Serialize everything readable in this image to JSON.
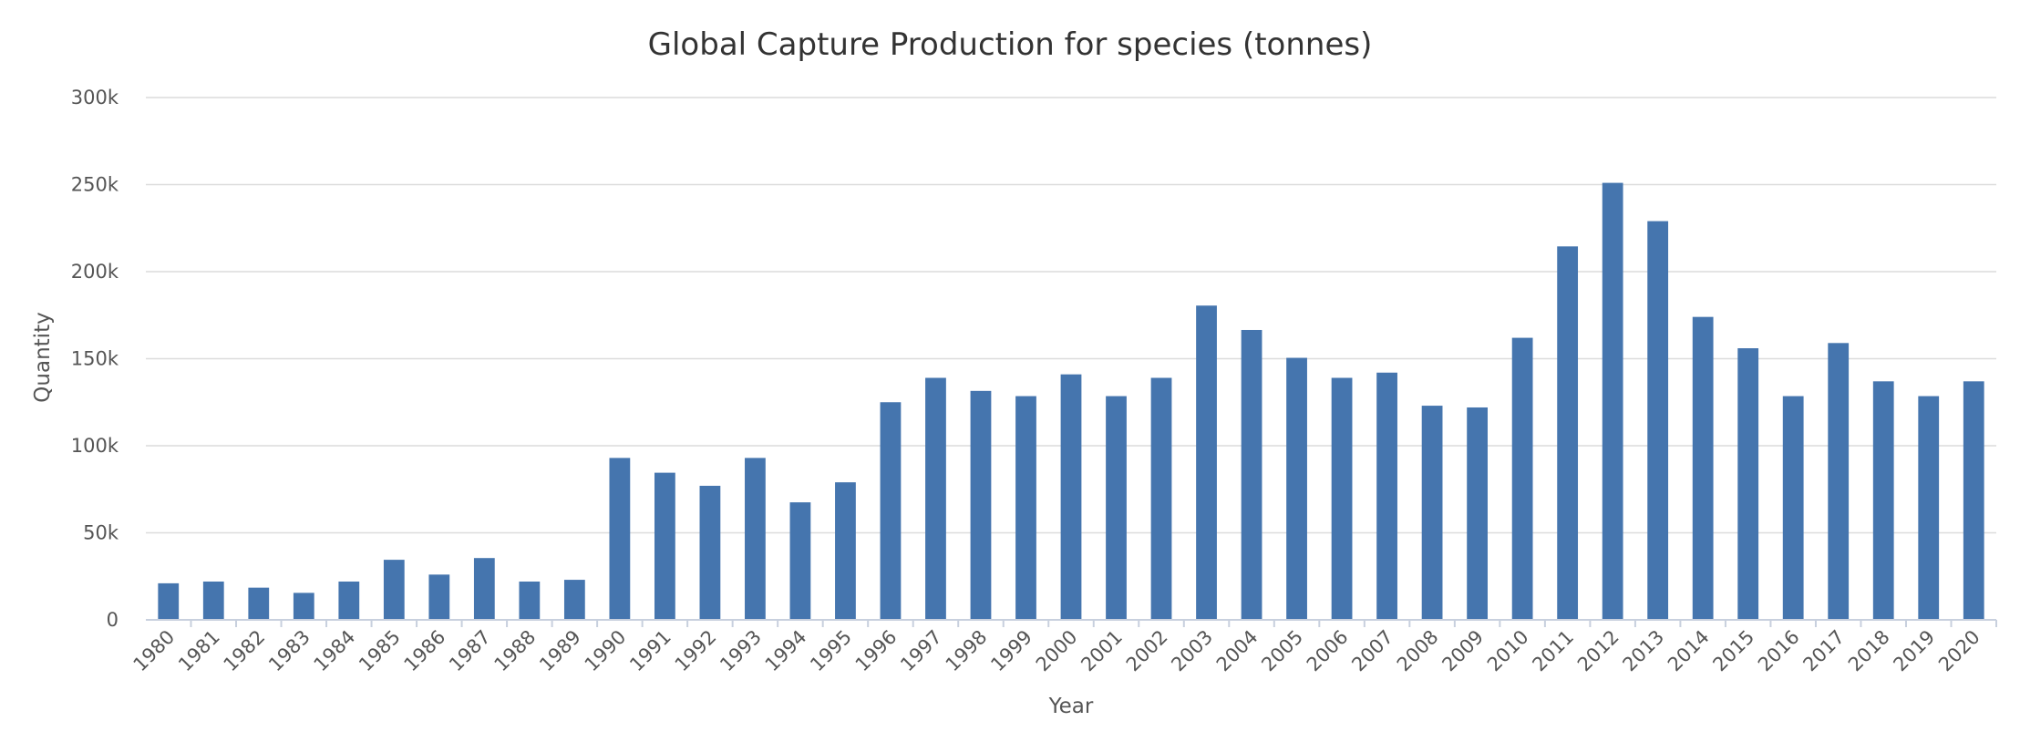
{
  "chart_data": {
    "type": "bar",
    "title": "Global Capture Production for species (tonnes)",
    "xlabel": "Year",
    "ylabel": "Quantity",
    "ylim": [
      0,
      300000
    ],
    "y_ticks": [
      0,
      50000,
      100000,
      150000,
      200000,
      250000,
      300000
    ],
    "y_tick_labels": [
      "0",
      "50k",
      "100k",
      "150k",
      "200k",
      "250k",
      "300k"
    ],
    "grid": true,
    "legend": "none",
    "bar_color": "#4575ae",
    "categories": [
      "1980",
      "1981",
      "1982",
      "1983",
      "1984",
      "1985",
      "1986",
      "1987",
      "1988",
      "1989",
      "1990",
      "1991",
      "1992",
      "1993",
      "1994",
      "1995",
      "1996",
      "1997",
      "1998",
      "1999",
      "2000",
      "2001",
      "2002",
      "2003",
      "2004",
      "2005",
      "2006",
      "2007",
      "2008",
      "2009",
      "2010",
      "2011",
      "2012",
      "2013",
      "2014",
      "2015",
      "2016",
      "2017",
      "2018",
      "2019",
      "2020"
    ],
    "values": [
      21000,
      22000,
      18500,
      15500,
      22000,
      34500,
      26000,
      35500,
      22000,
      23000,
      93000,
      84500,
      77000,
      93000,
      67500,
      79000,
      125000,
      139000,
      131500,
      128500,
      141000,
      128500,
      139000,
      180500,
      166500,
      150500,
      139000,
      142000,
      123000,
      122000,
      162000,
      214500,
      251000,
      229000,
      174000,
      156000,
      128500,
      159000,
      137000,
      128500,
      137000
    ]
  }
}
